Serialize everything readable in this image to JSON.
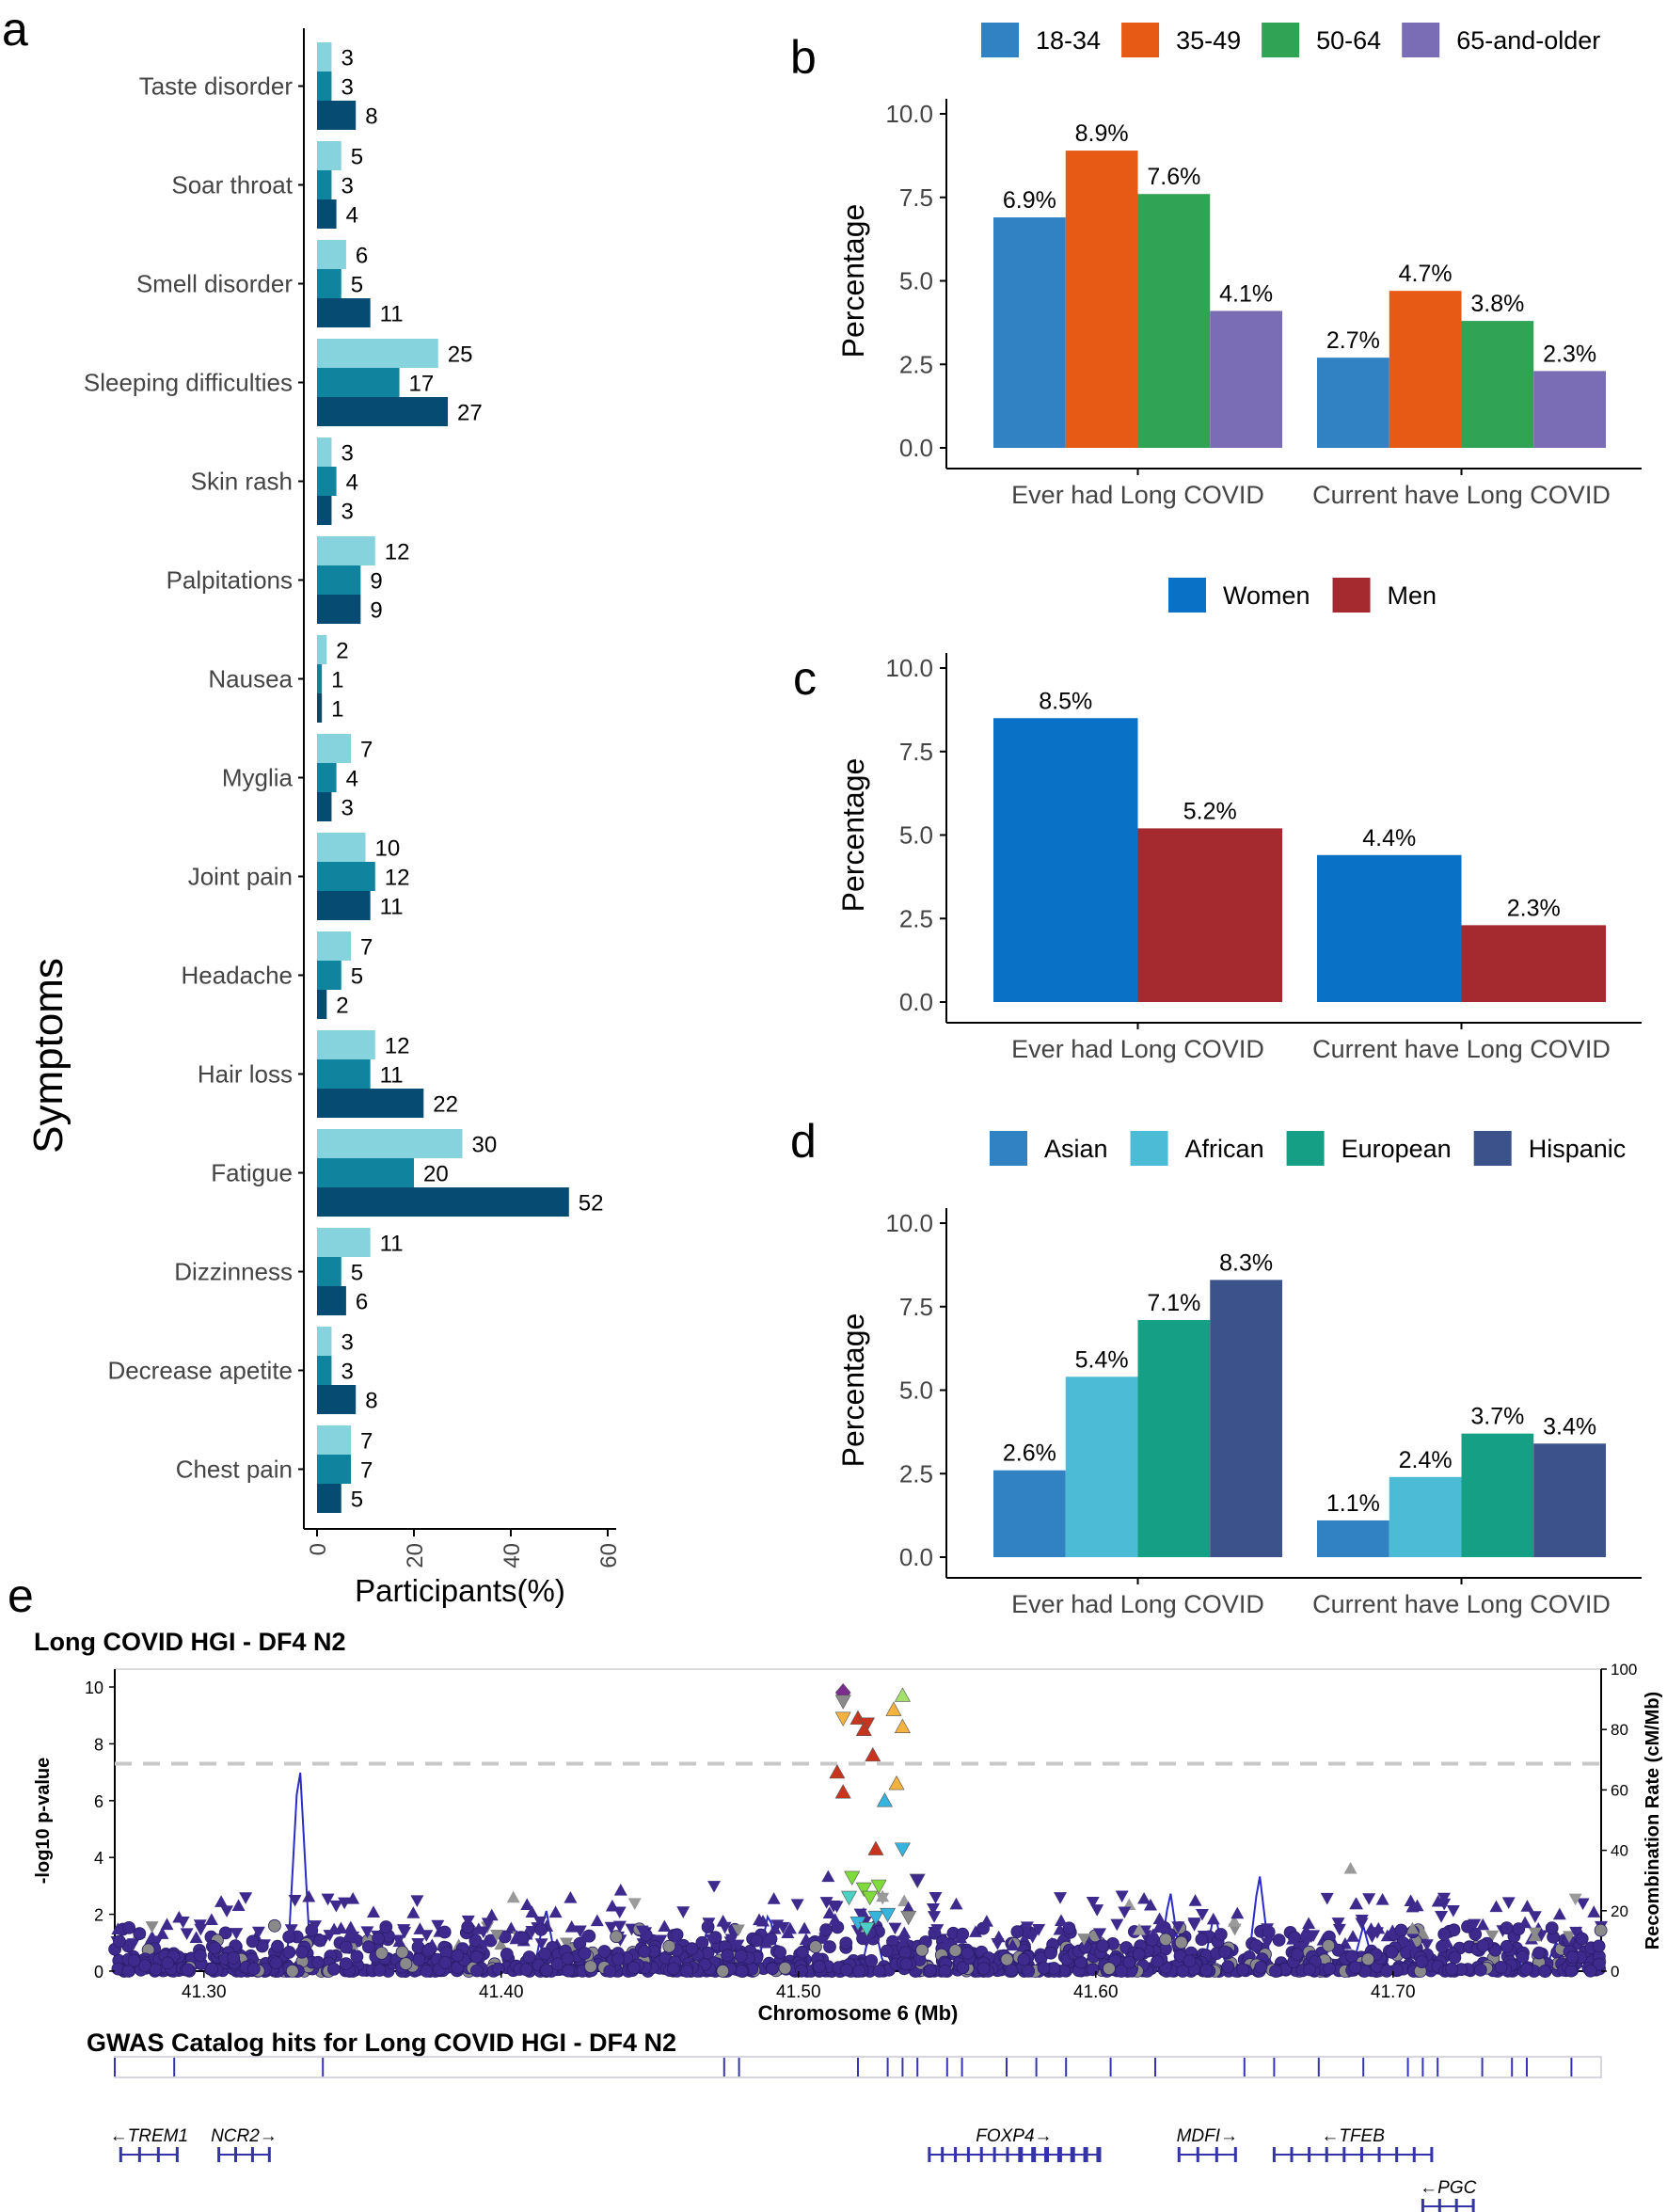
{
  "panel_letters": {
    "a": "a",
    "b": "b",
    "c": "c",
    "d": "d",
    "e": "e"
  },
  "chart_data": [
    {
      "id": "a",
      "type": "bar",
      "orientation": "horizontal",
      "title": "",
      "xlabel": "Participants(%)",
      "ylabel": "Symptoms",
      "xlim": [
        0,
        60
      ],
      "xticks": [
        0,
        20,
        40,
        60
      ],
      "categories": [
        "Taste disorder",
        "Soar throat",
        "Smell disorder",
        "Sleeping difficulties",
        "Skin rash",
        "Palpitations",
        "Nausea",
        "Myglia",
        "Joint pain",
        "Headache",
        "Hair loss",
        "Fatigue",
        "Dizzinness",
        "Decrease apetite",
        "Chest pain"
      ],
      "series": [
        {
          "name": "series-1",
          "color": "#86d2dd",
          "values": [
            3,
            5,
            6,
            25,
            3,
            12,
            2,
            7,
            10,
            7,
            12,
            30,
            11,
            3,
            7
          ]
        },
        {
          "name": "series-2",
          "color": "#10849f",
          "values": [
            3,
            3,
            5,
            17,
            4,
            9,
            1,
            4,
            12,
            5,
            11,
            20,
            5,
            3,
            7
          ]
        },
        {
          "name": "series-3",
          "color": "#064b72",
          "values": [
            8,
            4,
            11,
            27,
            3,
            9,
            1,
            3,
            11,
            2,
            22,
            52,
            6,
            8,
            5
          ]
        }
      ]
    },
    {
      "id": "b",
      "type": "bar",
      "title": "",
      "ylabel": "Percentage",
      "ylim": [
        0,
        10
      ],
      "yticks": [
        "0.0",
        "2.5",
        "5.0",
        "7.5",
        "10.0"
      ],
      "categories": [
        "Ever had Long COVID",
        "Current have Long COVID"
      ],
      "legend_position": "top",
      "series": [
        {
          "name": "18-34",
          "color": "#3182c2",
          "values": [
            6.9,
            2.7
          ],
          "labels": [
            "6.9%",
            "2.7%"
          ]
        },
        {
          "name": "35-49",
          "color": "#e65a16",
          "values": [
            8.9,
            4.7
          ],
          "labels": [
            "8.9%",
            "4.7%"
          ]
        },
        {
          "name": "50-64",
          "color": "#31a354",
          "values": [
            7.6,
            3.8
          ],
          "labels": [
            "7.6%",
            "3.8%"
          ]
        },
        {
          "name": "65-and-older",
          "color": "#7b6db5",
          "values": [
            4.1,
            2.3
          ],
          "labels": [
            "4.1%",
            "2.3%"
          ]
        }
      ]
    },
    {
      "id": "c",
      "type": "bar",
      "title": "",
      "ylabel": "Percentage",
      "ylim": [
        0,
        10
      ],
      "yticks": [
        "0.0",
        "2.5",
        "5.0",
        "7.5",
        "10.0"
      ],
      "categories": [
        "Ever had Long COVID",
        "Current have Long COVID"
      ],
      "legend_position": "top",
      "series": [
        {
          "name": "Women",
          "color": "#0a72c6",
          "values": [
            8.5,
            4.4
          ],
          "labels": [
            "8.5%",
            "4.4%"
          ]
        },
        {
          "name": "Men",
          "color": "#a52a30",
          "values": [
            5.2,
            2.3
          ],
          "labels": [
            "5.2%",
            "2.3%"
          ]
        }
      ]
    },
    {
      "id": "d",
      "type": "bar",
      "title": "",
      "ylabel": "Percentage",
      "ylim": [
        0,
        10
      ],
      "yticks": [
        "0.0",
        "2.5",
        "5.0",
        "7.5",
        "10.0"
      ],
      "categories": [
        "Ever had Long COVID",
        "Current have Long COVID"
      ],
      "legend_position": "top",
      "series": [
        {
          "name": "Asian",
          "color": "#3182c2",
          "values": [
            2.6,
            1.1
          ],
          "labels": [
            "2.6%",
            "1.1%"
          ]
        },
        {
          "name": "African",
          "color": "#4bbbd6",
          "values": [
            5.4,
            2.4
          ],
          "labels": [
            "5.4%",
            "2.4%"
          ]
        },
        {
          "name": "European",
          "color": "#15a086",
          "values": [
            7.1,
            3.7
          ],
          "labels": [
            "7.1%",
            "3.7%"
          ]
        },
        {
          "name": "Hispanic",
          "color": "#3b528b",
          "values": [
            8.3,
            3.4
          ],
          "labels": [
            "8.3%",
            "3.4%"
          ]
        }
      ]
    },
    {
      "id": "e",
      "type": "scatter",
      "title": "Long COVID HGI - DF4 N2",
      "xlabel": "Chromosome 6 (Mb)",
      "ylabel": "-log10 p-value",
      "y2label": "Recombination Rate (cM/Mb)",
      "xlim": [
        41.27,
        41.77
      ],
      "ylim": [
        0,
        10.5
      ],
      "y2lim": [
        0,
        100
      ],
      "xticks": [
        "41.30",
        "41.40",
        "41.50",
        "41.60",
        "41.70"
      ],
      "yticks": [
        "0",
        "2",
        "4",
        "6",
        "8",
        "10"
      ],
      "y2ticks": [
        "0",
        "20",
        "40",
        "60",
        "80",
        "100"
      ],
      "significance_threshold": 7.3,
      "top_hits": [
        {
          "x": 41.515,
          "y": 9.8,
          "color": "#7b2d8e",
          "shape": "diamond"
        },
        {
          "x": 41.515,
          "y": 9.5,
          "color": "#8a8a8a",
          "shape": "triangle-down"
        },
        {
          "x": 41.515,
          "y": 8.9,
          "color": "#f4b33f",
          "shape": "triangle-down"
        },
        {
          "x": 41.52,
          "y": 8.9,
          "color": "#c7351f",
          "shape": "triangle-up"
        },
        {
          "x": 41.523,
          "y": 8.7,
          "color": "#c7351f",
          "shape": "triangle-down"
        },
        {
          "x": 41.522,
          "y": 8.5,
          "color": "#c7351f",
          "shape": "triangle-up"
        },
        {
          "x": 41.535,
          "y": 9.7,
          "color": "#a5e06e",
          "shape": "triangle-up"
        },
        {
          "x": 41.532,
          "y": 9.2,
          "color": "#f4b33f",
          "shape": "triangle-up"
        },
        {
          "x": 41.535,
          "y": 8.6,
          "color": "#f4b33f",
          "shape": "triangle-up"
        },
        {
          "x": 41.525,
          "y": 7.6,
          "color": "#c7351f",
          "shape": "triangle-up"
        },
        {
          "x": 41.513,
          "y": 7.0,
          "color": "#c7351f",
          "shape": "triangle-up"
        },
        {
          "x": 41.515,
          "y": 6.3,
          "color": "#c7351f",
          "shape": "triangle-up"
        },
        {
          "x": 41.533,
          "y": 6.6,
          "color": "#f4b33f",
          "shape": "triangle-up"
        },
        {
          "x": 41.529,
          "y": 6.0,
          "color": "#35b4de",
          "shape": "triangle-up"
        },
        {
          "x": 41.526,
          "y": 4.3,
          "color": "#c7351f",
          "shape": "triangle-up"
        },
        {
          "x": 41.535,
          "y": 4.3,
          "color": "#35b4de",
          "shape": "triangle-down"
        },
        {
          "x": 41.518,
          "y": 3.3,
          "color": "#7fdb3a",
          "shape": "triangle-down"
        },
        {
          "x": 41.522,
          "y": 2.9,
          "color": "#7fdb3a",
          "shape": "triangle-down"
        },
        {
          "x": 41.527,
          "y": 3.0,
          "color": "#7fdb3a",
          "shape": "triangle-down"
        },
        {
          "x": 41.524,
          "y": 2.6,
          "color": "#7fdb3a",
          "shape": "triangle-down"
        },
        {
          "x": 41.517,
          "y": 2.6,
          "color": "#4ad1c3",
          "shape": "triangle-down"
        },
        {
          "x": 41.52,
          "y": 1.7,
          "color": "#35b4de",
          "shape": "triangle-down"
        },
        {
          "x": 41.526,
          "y": 1.9,
          "color": "#35b4de",
          "shape": "triangle-down"
        },
        {
          "x": 41.53,
          "y": 2.0,
          "color": "#35b4de",
          "shape": "triangle-down"
        },
        {
          "x": 41.523,
          "y": 1.5,
          "color": "#4ad1c3",
          "shape": "triangle-down"
        },
        {
          "x": 41.537,
          "y": 1.9,
          "color": "#8a8a8a",
          "shape": "triangle-down"
        },
        {
          "x": 41.54,
          "y": 3.2,
          "color": "#3d2a8c",
          "shape": "triangle-down"
        }
      ],
      "gwas_track_title": "GWAS Catalog hits for Long COVID HGI - DF4 N2",
      "gwas_hits_mb": [
        41.27,
        41.29,
        41.34,
        41.475,
        41.48,
        41.52,
        41.53,
        41.535,
        41.54,
        41.55,
        41.555,
        41.57,
        41.58,
        41.59,
        41.605,
        41.62,
        41.65,
        41.66,
        41.675,
        41.69,
        41.705,
        41.71,
        41.715,
        41.73,
        41.74,
        41.745,
        41.76
      ],
      "genes": [
        {
          "name": "TREM1",
          "direction": "left",
          "start": 41.272,
          "end": 41.291
        },
        {
          "name": "NCR2",
          "direction": "right",
          "start": 41.305,
          "end": 41.322
        },
        {
          "name": "FOXP4",
          "direction": "right",
          "start": 41.544,
          "end": 41.601
        },
        {
          "name": "MDFI",
          "direction": "right",
          "start": 41.628,
          "end": 41.647
        },
        {
          "name": "TFEB",
          "direction": "left",
          "start": 41.66,
          "end": 41.713
        },
        {
          "name": "PGC",
          "direction": "left",
          "start": 41.71,
          "end": 41.727
        }
      ]
    }
  ]
}
